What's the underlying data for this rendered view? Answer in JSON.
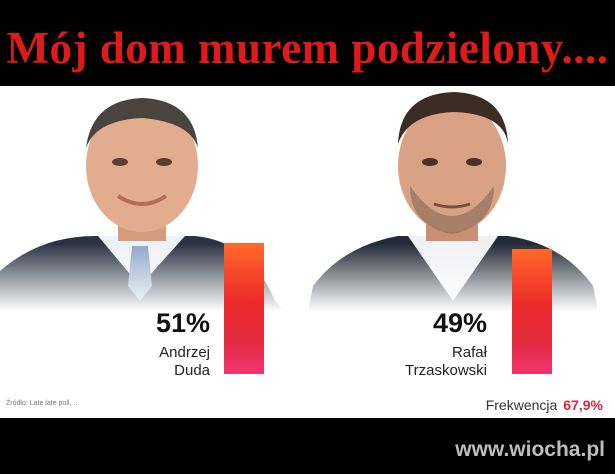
{
  "header": {
    "title": "Mój dom murem podzielony...."
  },
  "candidates": [
    {
      "percent": "51%",
      "value": 51,
      "first_name": "Andrzej",
      "last_name": "Duda",
      "bar_color": "#ee2b2b"
    },
    {
      "percent": "49%",
      "value": 49,
      "first_name": "Rafał",
      "last_name": "Trzaskowski",
      "bar_color": "#ee2b2b"
    }
  ],
  "source_note": "Źródło: Late late poll, ...",
  "turnout": {
    "label": "Frekwencja",
    "value": "67,9%",
    "value_color": "#e1243a"
  },
  "watermark": "www.wiocha.pl"
}
